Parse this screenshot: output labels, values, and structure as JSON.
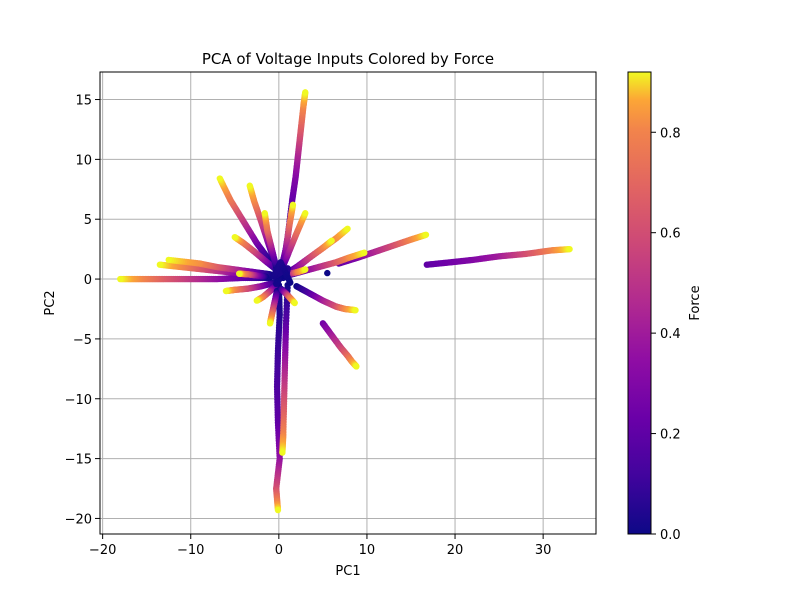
{
  "chart_data": {
    "type": "scatter",
    "title": "PCA of Voltage Inputs Colored by Force",
    "xlabel": "PC1",
    "ylabel": "PC2",
    "xlim": [
      -20.3,
      36.0
    ],
    "ylim": [
      -21.3,
      17.3
    ],
    "x_ticks": [
      -20,
      -10,
      0,
      10,
      20,
      30
    ],
    "y_ticks": [
      -20,
      -15,
      -10,
      -5,
      0,
      5,
      10,
      15
    ],
    "grid": true,
    "colormap": "plasma",
    "colorbar": {
      "label": "Force",
      "range": [
        0.0,
        0.92
      ],
      "ticks": [
        0.0,
        0.2,
        0.4,
        0.6,
        0.8
      ]
    },
    "series": [
      {
        "x": [
          0.4,
          1.0,
          1.5,
          1.9,
          2.2,
          2.5,
          2.8,
          3.0
        ],
        "y": [
          0.8,
          3.5,
          6.5,
          8.5,
          10.5,
          12.5,
          14.5,
          15.6
        ],
        "force": [
          0.0,
          0.1,
          0.2,
          0.3,
          0.45,
          0.65,
          0.82,
          0.92
        ]
      },
      {
        "x": [
          0.0,
          0.1,
          -0.1,
          -0.2,
          -0.1,
          0.1,
          -0.3,
          -0.1
        ],
        "y": [
          -0.5,
          -3.0,
          -6.0,
          -9.0,
          -12.0,
          -15.0,
          -17.5,
          -19.3
        ],
        "force": [
          0.0,
          0.05,
          0.1,
          0.15,
          0.2,
          0.35,
          0.6,
          0.92
        ]
      },
      {
        "x": [
          1.0,
          0.8,
          0.7,
          0.6,
          0.5,
          0.4
        ],
        "y": [
          -0.5,
          -4.0,
          -7.0,
          -10.0,
          -13.0,
          -14.5
        ],
        "force": [
          0.0,
          0.2,
          0.4,
          0.6,
          0.8,
          0.92
        ]
      },
      {
        "x": [
          2.0,
          3.5,
          5.0,
          6.5,
          7.5,
          8.7
        ],
        "y": [
          -0.6,
          -1.2,
          -1.8,
          -2.3,
          -2.5,
          -2.6
        ],
        "force": [
          0.0,
          0.15,
          0.4,
          0.6,
          0.8,
          0.92
        ]
      },
      {
        "x": [
          5.0,
          6.0,
          7.0,
          7.8,
          8.3,
          8.8
        ],
        "y": [
          -3.7,
          -4.7,
          -5.7,
          -6.4,
          -6.9,
          -7.3
        ],
        "force": [
          0.25,
          0.4,
          0.55,
          0.7,
          0.82,
          0.92
        ]
      },
      {
        "x": [
          6.8,
          9.0,
          11.0,
          13.0,
          15.0,
          16.7
        ],
        "y": [
          1.3,
          1.8,
          2.3,
          2.8,
          3.3,
          3.7
        ],
        "force": [
          0.2,
          0.3,
          0.45,
          0.6,
          0.8,
          0.92
        ]
      },
      {
        "x": [
          16.8,
          19.5,
          22.0,
          25.0,
          28.0,
          31.0,
          33.0
        ],
        "y": [
          1.2,
          1.4,
          1.6,
          1.9,
          2.1,
          2.4,
          2.5
        ],
        "force": [
          0.2,
          0.25,
          0.3,
          0.4,
          0.6,
          0.8,
          0.92
        ]
      },
      {
        "x": [
          -1.0,
          -4.0,
          -7.0,
          -10.0,
          -13.0,
          -15.5,
          -18.0
        ],
        "y": [
          0.1,
          0.1,
          0.0,
          0.0,
          0.0,
          0.0,
          0.0
        ],
        "force": [
          0.0,
          0.2,
          0.35,
          0.5,
          0.65,
          0.8,
          0.92
        ]
      },
      {
        "x": [
          -1.0,
          -3.5,
          -6.0,
          -8.5,
          -11.0,
          -13.5
        ],
        "y": [
          0.2,
          0.4,
          0.6,
          0.8,
          1.0,
          1.2
        ],
        "force": [
          0.0,
          0.2,
          0.4,
          0.6,
          0.8,
          0.92
        ]
      },
      {
        "x": [
          -1.0,
          -3.0,
          -5.0,
          -7.0,
          -9.0,
          -12.5
        ],
        "y": [
          0.4,
          0.6,
          0.8,
          1.0,
          1.3,
          1.6
        ],
        "force": [
          0.0,
          0.25,
          0.45,
          0.65,
          0.82,
          0.92
        ]
      },
      {
        "x": [
          -1.0,
          -2.5,
          -4.0,
          -5.5,
          -6.7
        ],
        "y": [
          1.5,
          3.0,
          4.8,
          6.6,
          8.4
        ],
        "force": [
          0.0,
          0.25,
          0.5,
          0.75,
          0.92
        ]
      },
      {
        "x": [
          -0.5,
          -1.2,
          -2.0,
          -2.8,
          -3.3
        ],
        "y": [
          1.5,
          3.0,
          4.8,
          6.5,
          7.8
        ],
        "force": [
          0.0,
          0.3,
          0.55,
          0.8,
          0.92
        ]
      },
      {
        "x": [
          -0.3,
          -1.5,
          -2.8,
          -4.0,
          -5.0
        ],
        "y": [
          0.8,
          1.5,
          2.3,
          3.0,
          3.5
        ],
        "force": [
          0.0,
          0.3,
          0.55,
          0.75,
          0.92
        ]
      },
      {
        "x": [
          -0.3,
          -0.8,
          -1.3,
          -1.6
        ],
        "y": [
          1.0,
          2.5,
          4.0,
          5.5
        ],
        "force": [
          0.0,
          0.35,
          0.7,
          0.92
        ]
      },
      {
        "x": [
          0.3,
          0.8,
          1.2,
          1.6
        ],
        "y": [
          1.0,
          2.5,
          4.5,
          6.2
        ],
        "force": [
          0.0,
          0.35,
          0.7,
          0.92
        ]
      },
      {
        "x": [
          0.3,
          1.0,
          2.0,
          3.0
        ],
        "y": [
          0.8,
          2.0,
          3.8,
          5.5
        ],
        "force": [
          0.0,
          0.35,
          0.7,
          0.92
        ]
      },
      {
        "x": [
          0.5,
          2.0,
          3.5,
          5.0,
          6.5,
          7.8
        ],
        "y": [
          0.3,
          1.0,
          1.8,
          2.6,
          3.4,
          4.2
        ],
        "force": [
          0.0,
          0.25,
          0.45,
          0.65,
          0.82,
          0.92
        ]
      },
      {
        "x": [
          0.5,
          2.5,
          4.5,
          6.5,
          8.0,
          9.7
        ],
        "y": [
          0.2,
          0.6,
          1.0,
          1.4,
          1.8,
          2.2
        ],
        "force": [
          0.0,
          0.25,
          0.45,
          0.65,
          0.82,
          0.92
        ]
      },
      {
        "x": [
          0.5,
          2.0,
          3.5,
          5.0,
          6.0
        ],
        "y": [
          0.1,
          0.9,
          1.8,
          2.6,
          3.2
        ],
        "force": [
          0.0,
          0.3,
          0.55,
          0.78,
          0.92
        ]
      },
      {
        "x": [
          -0.5,
          -2.0,
          -3.5,
          -5.0,
          -6.0
        ],
        "y": [
          -0.3,
          -0.6,
          -0.8,
          -0.9,
          -1.0
        ],
        "force": [
          0.0,
          0.3,
          0.55,
          0.78,
          0.92
        ]
      },
      {
        "x": [
          -0.3,
          -1.0,
          -1.8,
          -2.5
        ],
        "y": [
          -0.5,
          -1.0,
          -1.5,
          -1.8
        ],
        "force": [
          0.0,
          0.4,
          0.75,
          0.92
        ]
      },
      {
        "x": [
          -0.2,
          -0.5,
          -0.8,
          -1.0
        ],
        "y": [
          -1.0,
          -2.0,
          -3.0,
          -3.7
        ],
        "force": [
          0.0,
          0.4,
          0.75,
          0.92
        ]
      },
      {
        "x": [
          0.2,
          0.8,
          1.3,
          1.8
        ],
        "y": [
          -0.8,
          -1.2,
          -1.6,
          -2.0
        ],
        "force": [
          0.0,
          0.4,
          0.75,
          0.92
        ]
      },
      {
        "x": [
          0.4,
          1.0,
          1.6,
          2.2,
          3.0
        ],
        "y": [
          0.2,
          0.4,
          0.5,
          0.6,
          0.8
        ],
        "force": [
          0.0,
          0.2,
          0.5,
          0.8,
          0.92
        ]
      },
      {
        "x": [
          -1.5,
          -2.5,
          -3.5,
          -4.5
        ],
        "y": [
          0.2,
          0.3,
          0.4,
          0.45
        ],
        "force": [
          0.0,
          0.3,
          0.65,
          0.92
        ]
      },
      {
        "x": [
          5.5
        ],
        "y": [
          0.5
        ],
        "force": [
          0.0
        ]
      },
      {
        "x": [
          0.0,
          0.3,
          -0.3,
          0.5,
          -0.2,
          0.8,
          1.0,
          -0.6,
          0.2,
          1.3
        ],
        "y": [
          0.0,
          0.3,
          -0.4,
          0.8,
          0.6,
          0.2,
          0.9,
          0.2,
          1.4,
          -0.3
        ],
        "force": [
          0.0,
          0.0,
          0.02,
          0.0,
          0.03,
          0.0,
          0.05,
          0.02,
          0.04,
          0.0
        ]
      }
    ]
  }
}
